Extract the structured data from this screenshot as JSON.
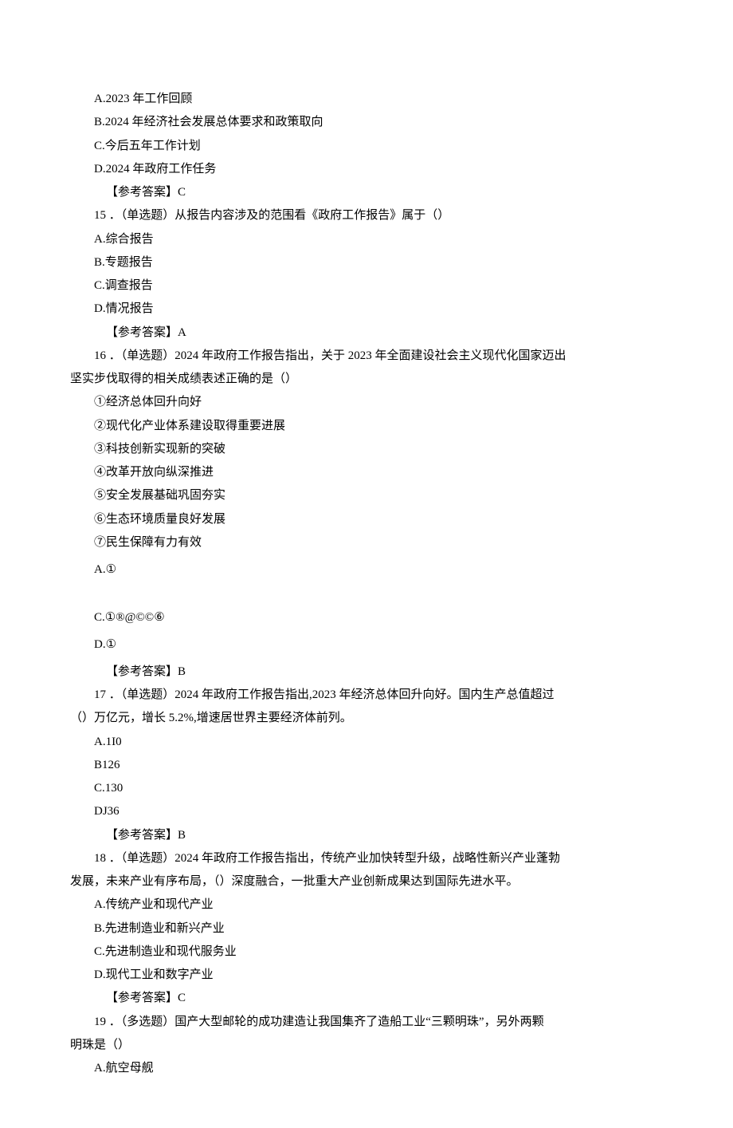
{
  "q14": {
    "opts": {
      "A": "A.2023 年工作回顾",
      "B": "B.2024 年经济社会发展总体要求和政策取向",
      "C": "C.今后五年工作计划",
      "D": "D.2024 年政府工作任务"
    },
    "answer": "【参考答案】C"
  },
  "q15": {
    "stem": "15 ．（单选题）从报告内容涉及的范围看《政府工作报告》属于（）",
    "opts": {
      "A": "A.综合报告",
      "B": "B.专题报告",
      "C": "C.调查报告",
      "D": "D.情况报告"
    },
    "answer": "【参考答案】A"
  },
  "q16": {
    "stem_l1": "16 ．（单选题）2024 年政府工作报告指出，关于 2023 年全面建设社会主义现代化国家迈出",
    "stem_l2": "坚实步伐取得的相关成绩表述正确的是（）",
    "items": {
      "i1": "①经济总体回升向好",
      "i2": "②现代化产业体系建设取得重要进展",
      "i3": "③科技创新实现新的突破",
      "i4": "④改革开放向纵深推进",
      "i5": "⑤安全发展基础巩固夯实",
      "i6": "⑥生态环境质量良好发展",
      "i7": "⑦民生保障有力有效"
    },
    "opts": {
      "A": "A.①",
      "C": "C.①®@©©⑥",
      "D": "D.①"
    },
    "answer": "【参考答案】B"
  },
  "q17": {
    "stem_l1": "17 ．（单选题）2024 年政府工作报告指出,2023 年经济总体回升向好。国内生产总值超过",
    "stem_l2": "（）万亿元，增长 5.2%,增速居世界主要经济体前列。",
    "opts": {
      "A": "A.1I0",
      "B": "B126",
      "C": "C.130",
      "D": "DJ36"
    },
    "answer": "【参考答案】B"
  },
  "q18": {
    "stem_l1": "18 ．（单选题）2024 年政府工作报告指出，传统产业加快转型升级，战略性新兴产业蓬勃",
    "stem_l2": "发展，未来产业有序布局，（）深度融合，一批重大产业创新成果达到国际先进水平。",
    "opts": {
      "A": "A.传统产业和现代产业",
      "B": "B.先进制造业和新兴产业",
      "C": "C.先进制造业和现代服务业",
      "D": "D.现代工业和数字产业"
    },
    "answer": "【参考答案】C"
  },
  "q19": {
    "stem_l1": "19 ．（多选题）国产大型邮轮的成功建造让我国集齐了造船工业“三颗明珠”，另外两颗",
    "stem_l2": "明珠是（）",
    "opts": {
      "A": "A.航空母舰"
    }
  }
}
